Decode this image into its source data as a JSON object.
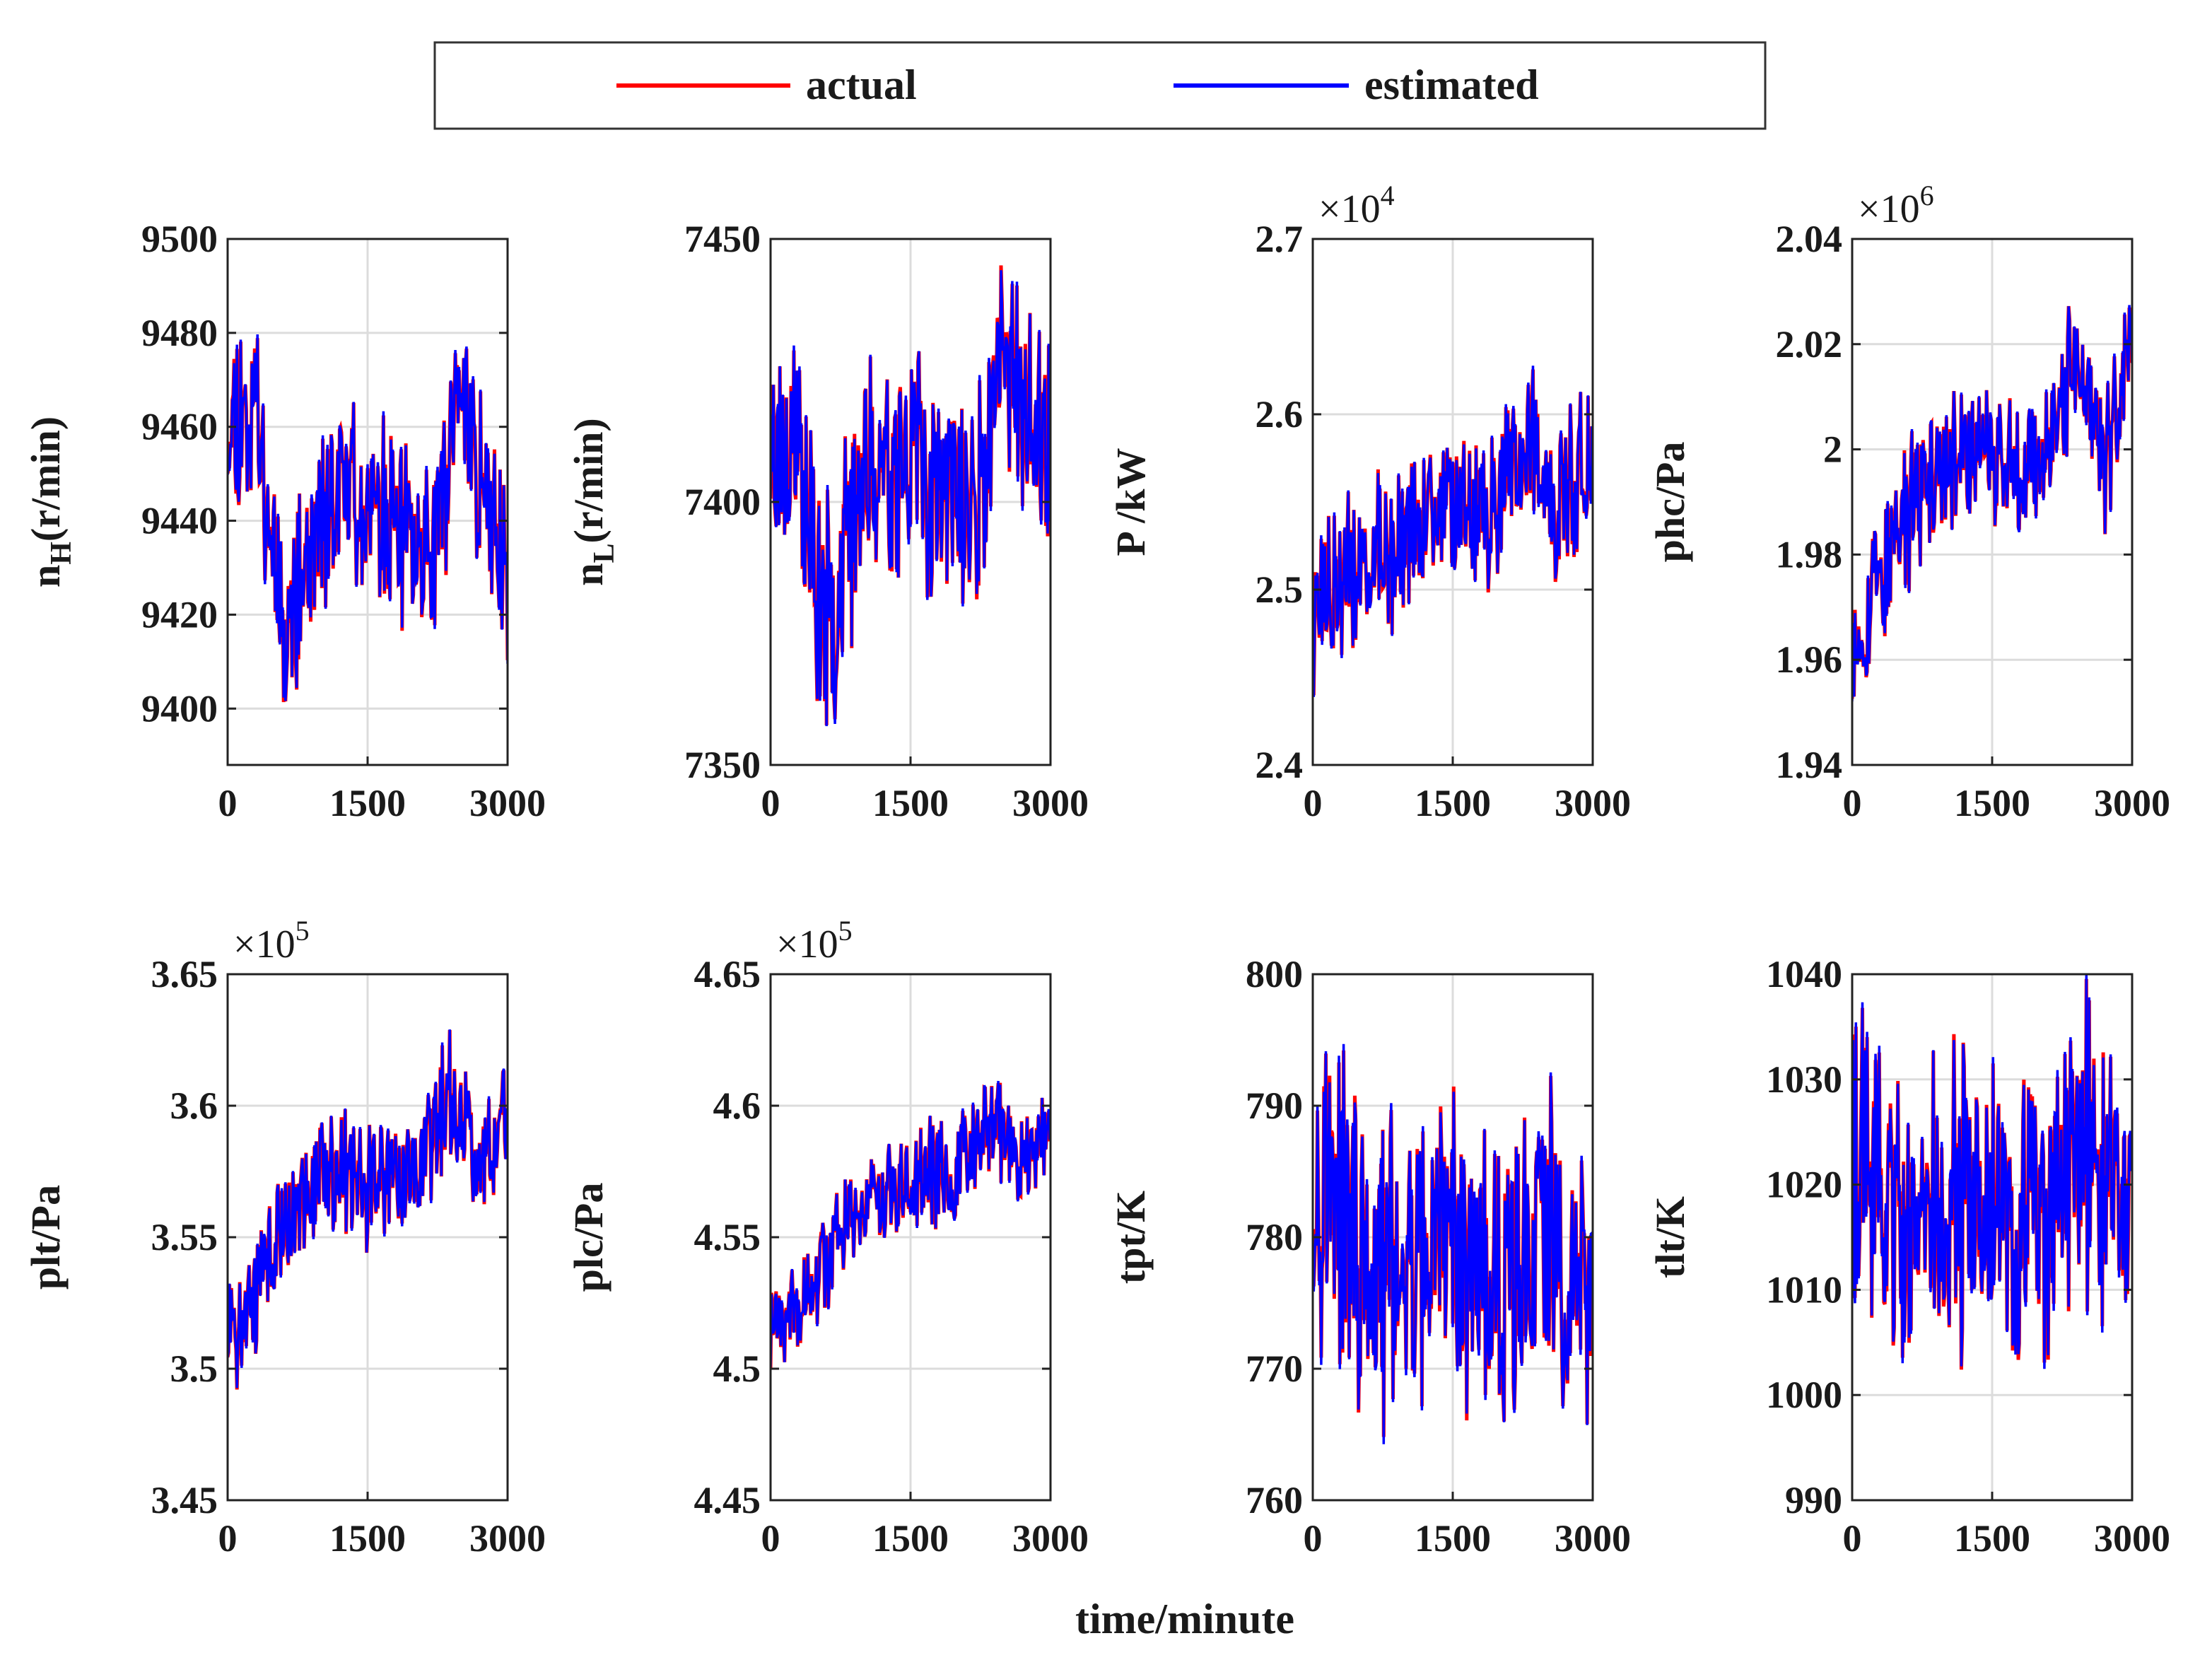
{
  "colors": {
    "actual": "#ff0000",
    "estimated": "#0000ff"
  },
  "legend": {
    "entries": [
      {
        "label": "actual",
        "color": "#ff0000"
      },
      {
        "label": "estimated",
        "color": "#0000ff"
      }
    ],
    "placement": "top-center"
  },
  "xlabel": "time/minute",
  "chart_data": [
    {
      "type": "line",
      "ylabel_main": "n",
      "ylabel_sub": "H",
      "ylabel_tail": "(r/min)",
      "exponent": "",
      "ylim": [
        9388,
        9500
      ],
      "yticks": [
        9400,
        9420,
        9440,
        9460,
        9480,
        9500
      ],
      "ytick_labels": [
        "9400",
        "9420",
        "9440",
        "9460",
        "9480",
        "9500"
      ],
      "xlim": [
        0,
        3000
      ],
      "xticks": [
        0,
        1500,
        3000
      ],
      "xtick_labels": [
        "0",
        "1500",
        "3000"
      ],
      "trend": [
        [
          0,
          9462
        ],
        [
          300,
          9465
        ],
        [
          550,
          9425
        ],
        [
          700,
          9420
        ],
        [
          1000,
          9440
        ],
        [
          1400,
          9448
        ],
        [
          1800,
          9435
        ],
        [
          2200,
          9432
        ],
        [
          2500,
          9470
        ],
        [
          2700,
          9450
        ],
        [
          3000,
          9432
        ]
      ],
      "noise": 24,
      "seed": 11,
      "series": [
        {
          "name": "actual",
          "color": "#ff0000"
        },
        {
          "name": "estimated",
          "color": "#0000ff"
        }
      ]
    },
    {
      "type": "line",
      "ylabel_main": "n",
      "ylabel_sub": "L",
      "ylabel_tail": "(r/min)",
      "exponent": "",
      "ylim": [
        7350,
        7450
      ],
      "yticks": [
        7350,
        7400,
        7450
      ],
      "ytick_labels": [
        "7350",
        "7400",
        "7450"
      ],
      "xlim": [
        0,
        3000
      ],
      "xticks": [
        0,
        1500,
        3000
      ],
      "xtick_labels": [
        "0",
        "1500",
        "3000"
      ],
      "trend": [
        [
          0,
          7412
        ],
        [
          300,
          7410
        ],
        [
          550,
          7375
        ],
        [
          700,
          7382
        ],
        [
          1000,
          7405
        ],
        [
          1400,
          7410
        ],
        [
          1800,
          7402
        ],
        [
          2200,
          7398
        ],
        [
          2500,
          7430
        ],
        [
          2700,
          7415
        ],
        [
          3000,
          7408
        ]
      ],
      "noise": 26,
      "seed": 23,
      "series": [
        {
          "name": "actual",
          "color": "#ff0000"
        },
        {
          "name": "estimated",
          "color": "#0000ff"
        }
      ]
    },
    {
      "type": "line",
      "ylabel_main": "P /kW",
      "ylabel_sub": "",
      "ylabel_tail": "",
      "exponent": "4",
      "ylim": [
        2.4,
        2.7
      ],
      "yticks": [
        2.4,
        2.5,
        2.6,
        2.7
      ],
      "ytick_labels": [
        "2.4",
        "2.5",
        "2.6",
        "2.7"
      ],
      "xlim": [
        0,
        3000
      ],
      "xticks": [
        0,
        1500,
        3000
      ],
      "xtick_labels": [
        "0",
        "1500",
        "3000"
      ],
      "trend": [
        [
          0,
          2.49
        ],
        [
          500,
          2.51
        ],
        [
          1000,
          2.53
        ],
        [
          1500,
          2.545
        ],
        [
          2000,
          2.55
        ],
        [
          2400,
          2.585
        ],
        [
          2600,
          2.545
        ],
        [
          3000,
          2.575
        ]
      ],
      "noise": 0.055,
      "seed": 37,
      "series": [
        {
          "name": "actual",
          "color": "#ff0000"
        },
        {
          "name": "estimated",
          "color": "#0000ff"
        }
      ]
    },
    {
      "type": "line",
      "ylabel_main": "phc/Pa",
      "ylabel_sub": "",
      "ylabel_tail": "",
      "exponent": "6",
      "ylim": [
        1.94,
        2.04
      ],
      "yticks": [
        1.94,
        1.96,
        1.98,
        2.0,
        2.02,
        2.04
      ],
      "ytick_labels": [
        "1.94",
        "1.96",
        "1.98",
        "2",
        "2.02",
        "2.04"
      ],
      "xlim": [
        0,
        3000
      ],
      "xticks": [
        0,
        1500,
        3000
      ],
      "xtick_labels": [
        "0",
        "1500",
        "3000"
      ],
      "trend": [
        [
          0,
          1.962
        ],
        [
          400,
          1.98
        ],
        [
          900,
          1.997
        ],
        [
          1500,
          2.0
        ],
        [
          2000,
          1.997
        ],
        [
          2400,
          2.018
        ],
        [
          2700,
          1.998
        ],
        [
          3000,
          2.018
        ]
      ],
      "noise": 0.016,
      "seed": 53,
      "series": [
        {
          "name": "actual",
          "color": "#ff0000"
        },
        {
          "name": "estimated",
          "color": "#0000ff"
        }
      ]
    },
    {
      "type": "line",
      "ylabel_main": "plt/Pa",
      "ylabel_sub": "",
      "ylabel_tail": "",
      "exponent": "5",
      "ylim": [
        3.45,
        3.65
      ],
      "yticks": [
        3.45,
        3.5,
        3.55,
        3.6,
        3.65
      ],
      "ytick_labels": [
        "3.45",
        "3.5",
        "3.55",
        "3.6",
        "3.65"
      ],
      "xlim": [
        0,
        3000
      ],
      "xticks": [
        0,
        1500,
        3000
      ],
      "xtick_labels": [
        "0",
        "1500",
        "3000"
      ],
      "trend": [
        [
          0,
          3.51
        ],
        [
          500,
          3.545
        ],
        [
          1000,
          3.575
        ],
        [
          1500,
          3.57
        ],
        [
          2000,
          3.575
        ],
        [
          2400,
          3.605
        ],
        [
          2700,
          3.575
        ],
        [
          3000,
          3.6
        ]
      ],
      "noise": 0.028,
      "seed": 71,
      "series": [
        {
          "name": "actual",
          "color": "#ff0000"
        },
        {
          "name": "estimated",
          "color": "#0000ff"
        }
      ]
    },
    {
      "type": "line",
      "ylabel_main": "plc/Pa",
      "ylabel_sub": "",
      "ylabel_tail": "",
      "exponent": "5",
      "ylim": [
        4.45,
        4.65
      ],
      "yticks": [
        4.45,
        4.5,
        4.55,
        4.6,
        4.65
      ],
      "ytick_labels": [
        "4.45",
        "4.5",
        "4.55",
        "4.6",
        "4.65"
      ],
      "xlim": [
        0,
        3000
      ],
      "xticks": [
        0,
        1500,
        3000
      ],
      "xtick_labels": [
        "0",
        "1500",
        "3000"
      ],
      "trend": [
        [
          0,
          4.51
        ],
        [
          500,
          4.535
        ],
        [
          1000,
          4.565
        ],
        [
          1500,
          4.57
        ],
        [
          2000,
          4.575
        ],
        [
          2400,
          4.595
        ],
        [
          2700,
          4.575
        ],
        [
          3000,
          4.595
        ]
      ],
      "noise": 0.024,
      "seed": 89,
      "series": [
        {
          "name": "actual",
          "color": "#ff0000"
        },
        {
          "name": "estimated",
          "color": "#0000ff"
        }
      ]
    },
    {
      "type": "line",
      "ylabel_main": "tpt/K",
      "ylabel_sub": "",
      "ylabel_tail": "",
      "exponent": "",
      "ylim": [
        760,
        800
      ],
      "yticks": [
        760,
        770,
        780,
        790,
        800
      ],
      "ytick_labels": [
        "760",
        "770",
        "780",
        "790",
        "800"
      ],
      "xlim": [
        0,
        3000
      ],
      "xticks": [
        0,
        1500,
        3000
      ],
      "xtick_labels": [
        "0",
        "1500",
        "3000"
      ],
      "trend": [
        [
          0,
          785
        ],
        [
          300,
          783
        ],
        [
          600,
          776
        ],
        [
          1000,
          777
        ],
        [
          1500,
          779
        ],
        [
          2000,
          775
        ],
        [
          2500,
          780
        ],
        [
          3000,
          775
        ]
      ],
      "noise": 14,
      "seed": 97,
      "series": [
        {
          "name": "actual",
          "color": "#ff0000"
        },
        {
          "name": "estimated",
          "color": "#0000ff"
        }
      ]
    },
    {
      "type": "line",
      "ylabel_main": "tlt/K",
      "ylabel_sub": "",
      "ylabel_tail": "",
      "exponent": "",
      "ylim": [
        990,
        1040
      ],
      "yticks": [
        990,
        1000,
        1010,
        1020,
        1030,
        1040
      ],
      "ytick_labels": [
        "990",
        "1000",
        "1010",
        "1020",
        "1030",
        "1040"
      ],
      "xlim": [
        0,
        3000
      ],
      "xticks": [
        0,
        1500,
        3000
      ],
      "xtick_labels": [
        "0",
        "1500",
        "3000"
      ],
      "trend": [
        [
          0,
          1024
        ],
        [
          300,
          1022
        ],
        [
          600,
          1014
        ],
        [
          1000,
          1018
        ],
        [
          1500,
          1019
        ],
        [
          2000,
          1016
        ],
        [
          2500,
          1024
        ],
        [
          3000,
          1017
        ]
      ],
      "noise": 17,
      "seed": 113,
      "series": [
        {
          "name": "actual",
          "color": "#ff0000"
        },
        {
          "name": "estimated",
          "color": "#0000ff"
        }
      ]
    }
  ]
}
